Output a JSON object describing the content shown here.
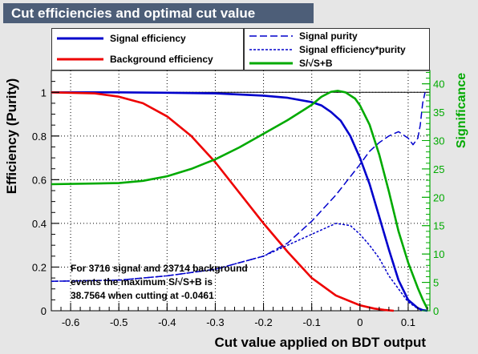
{
  "title": "Cut efficiencies and optimal cut value",
  "legend_left": [
    {
      "label": "Signal efficiency",
      "color": "#0000cc",
      "dash": "solid"
    },
    {
      "label": "Background efficiency",
      "color": "#ee0000",
      "dash": "solid"
    }
  ],
  "legend_right": [
    {
      "label": "Signal purity",
      "color": "#0000cc",
      "dash": "long"
    },
    {
      "label": "Signal efficiency*purity",
      "color": "#0000cc",
      "dash": "short"
    },
    {
      "label": "S/√S+B",
      "color": "#00aa00",
      "dash": "solid"
    }
  ],
  "note_lines": [
    "For 3716 signal and 23714 background",
    "events the maximum S/√S+B is",
    "38.7564 when cutting at -0.0461"
  ],
  "chart_data": {
    "type": "line",
    "xlabel": "Cut value applied on BDT output",
    "ylabel": "Efficiency (Purity)",
    "y2label": "Significance",
    "xlim": [
      -0.64,
      0.145
    ],
    "ylim": [
      0,
      1.1
    ],
    "y2lim": [
      0,
      42.35
    ],
    "x_ticks": [
      -0.6,
      -0.5,
      -0.4,
      -0.3,
      -0.2,
      -0.1,
      0,
      0.1
    ],
    "y_ticks": [
      0,
      0.2,
      0.4,
      0.6,
      0.8,
      1
    ],
    "y2_ticks": [
      0,
      5,
      10,
      15,
      20,
      25,
      30,
      35,
      40
    ],
    "grid": true,
    "series": [
      {
        "name": "Signal efficiency",
        "axis": "left",
        "color": "#0000cc",
        "dash": "solid",
        "x": [
          -0.64,
          -0.5,
          -0.4,
          -0.3,
          -0.2,
          -0.15,
          -0.1,
          -0.08,
          -0.06,
          -0.04,
          -0.02,
          0,
          0.02,
          0.04,
          0.06,
          0.08,
          0.1,
          0.12,
          0.13,
          0.14
        ],
        "y": [
          1.0,
          1.0,
          0.998,
          0.995,
          0.985,
          0.975,
          0.955,
          0.94,
          0.91,
          0.87,
          0.8,
          0.7,
          0.58,
          0.43,
          0.28,
          0.14,
          0.05,
          0.012,
          0.003,
          0.0
        ]
      },
      {
        "name": "Background efficiency",
        "axis": "left",
        "color": "#ee0000",
        "dash": "solid",
        "x": [
          -0.64,
          -0.55,
          -0.5,
          -0.45,
          -0.4,
          -0.35,
          -0.3,
          -0.25,
          -0.2,
          -0.15,
          -0.1,
          -0.05,
          0,
          0.03,
          0.05,
          0.07
        ],
        "y": [
          1.0,
          0.995,
          0.98,
          0.95,
          0.89,
          0.8,
          0.68,
          0.54,
          0.4,
          0.27,
          0.15,
          0.07,
          0.025,
          0.01,
          0.004,
          0.0
        ]
      },
      {
        "name": "Signal purity",
        "axis": "left",
        "color": "#0000cc",
        "dash": "long",
        "x": [
          -0.64,
          -0.5,
          -0.4,
          -0.3,
          -0.2,
          -0.15,
          -0.1,
          -0.05,
          0,
          0.02,
          0.04,
          0.06,
          0.08,
          0.1,
          0.11,
          0.12,
          0.125,
          0.13,
          0.135
        ],
        "y": [
          0.135,
          0.14,
          0.16,
          0.19,
          0.25,
          0.31,
          0.41,
          0.53,
          0.67,
          0.73,
          0.77,
          0.8,
          0.82,
          0.79,
          0.76,
          0.79,
          0.85,
          0.95,
          1.0
        ]
      },
      {
        "name": "Signal efficiency*purity",
        "axis": "left",
        "color": "#0000cc",
        "dash": "short",
        "x": [
          -0.64,
          -0.5,
          -0.4,
          -0.3,
          -0.2,
          -0.15,
          -0.1,
          -0.05,
          -0.02,
          0,
          0.02,
          0.04,
          0.06,
          0.08,
          0.1,
          0.12,
          0.135
        ],
        "y": [
          0.135,
          0.14,
          0.16,
          0.19,
          0.25,
          0.3,
          0.35,
          0.4,
          0.39,
          0.35,
          0.3,
          0.24,
          0.16,
          0.1,
          0.04,
          0.01,
          0.0
        ]
      },
      {
        "name": "S/√S+B",
        "axis": "right",
        "color": "#00aa00",
        "dash": "solid",
        "x": [
          -0.64,
          -0.5,
          -0.45,
          -0.4,
          -0.35,
          -0.3,
          -0.25,
          -0.2,
          -0.15,
          -0.1,
          -0.08,
          -0.06,
          -0.0461,
          -0.03,
          -0.01,
          0,
          0.02,
          0.04,
          0.06,
          0.08,
          0.1,
          0.12,
          0.13,
          0.14
        ],
        "y": [
          22.3,
          22.5,
          22.9,
          23.7,
          25.0,
          26.7,
          28.8,
          31.2,
          33.6,
          36.3,
          37.7,
          38.6,
          38.76,
          38.5,
          37.4,
          36.2,
          32.8,
          27.5,
          21.0,
          14.0,
          8.5,
          4.0,
          2.0,
          0.3
        ]
      }
    ]
  }
}
